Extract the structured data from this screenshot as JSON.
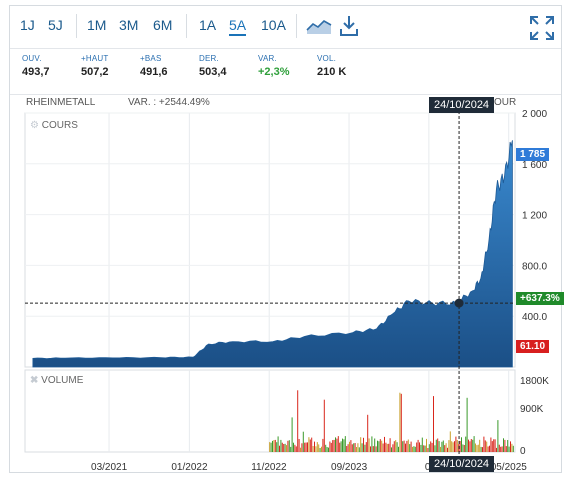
{
  "toolbar": {
    "periods_a": [
      "1J",
      "5J"
    ],
    "periods_b": [
      "1M",
      "3M",
      "6M"
    ],
    "periods_c": [
      "1A",
      "5A",
      "10A"
    ],
    "active_period": "5A"
  },
  "stats": [
    {
      "label": "OUV.",
      "value": "493,7"
    },
    {
      "label": "+HAUT",
      "value": "507,2"
    },
    {
      "label": "+BAS",
      "value": "491,6"
    },
    {
      "label": "DER.",
      "value": "503,4"
    },
    {
      "label": "VAR.",
      "value": "+2,3%"
    },
    {
      "label": "VOL.",
      "value": "210 K"
    }
  ],
  "chart": {
    "instrument": "RHEINMETALL",
    "var_text": "VAR. : +2544.49%",
    "cours_label": "COURS",
    "cours_right": "OUR",
    "volume_label": "VOLUME",
    "crosshair_date": "24/10/2024",
    "bottom_crosshair_date": "24/10/2024",
    "last_price_tag": "1 785",
    "pct_tag": "+637.3%",
    "low_tag": "61.10",
    "price_ticks": [
      "2 000",
      "1 600",
      "1 200",
      "800.0",
      "400.0"
    ],
    "volume_ticks": [
      "1800K",
      "900K",
      "0"
    ],
    "x_ticks": [
      "03/2021",
      "01/2022",
      "11/2022",
      "09/2023",
      "07",
      "05/2025"
    ],
    "colors": {
      "area_top": "#3a8ad0",
      "area_bottom": "#1b4f86",
      "tag_blue": "#2f7bd8",
      "tag_green": "#1f8a2a",
      "tag_red": "#d81f1f"
    }
  },
  "chart_data": {
    "type": "area",
    "title": "RHEINMETALL",
    "x": [
      "2020-05",
      "2020-09",
      "2021-03",
      "2021-09",
      "2022-01",
      "2022-03",
      "2022-06",
      "2022-11",
      "2023-03",
      "2023-09",
      "2023-12",
      "2024-02",
      "2024-04",
      "2024-07",
      "2024-10",
      "2024-12",
      "2025-01",
      "2025-02",
      "2025-03",
      "2025-04",
      "2025-05"
    ],
    "y": [
      68,
      70,
      72,
      74,
      77,
      180,
      200,
      200,
      240,
      270,
      300,
      420,
      520,
      500,
      503,
      600,
      700,
      1000,
      1400,
      1500,
      1785
    ],
    "ylim": [
      0,
      2000
    ],
    "volume_ylim": [
      0,
      1800
    ]
  }
}
